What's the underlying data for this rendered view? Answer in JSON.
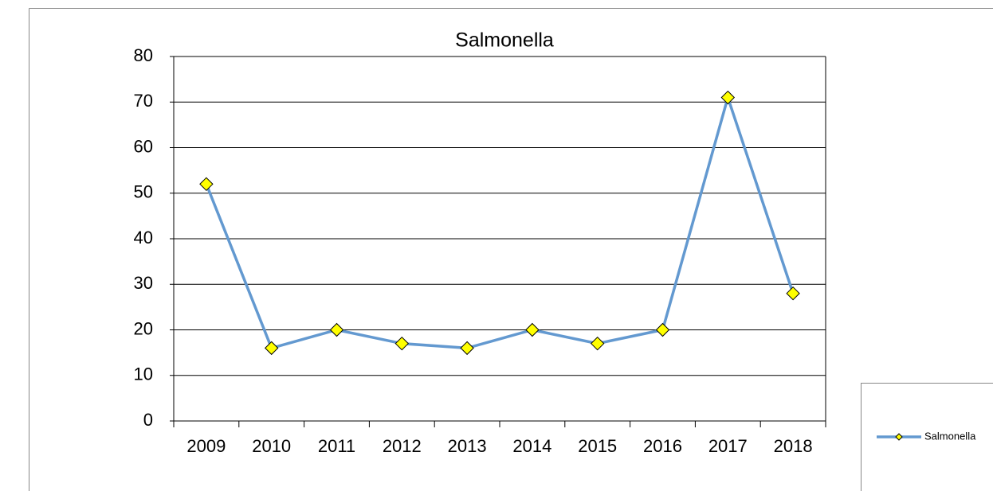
{
  "chart_data": {
    "type": "line",
    "title": "Salmonella",
    "categories": [
      "2009",
      "2010",
      "2011",
      "2012",
      "2013",
      "2014",
      "2015",
      "2016",
      "2017",
      "2018"
    ],
    "series": [
      {
        "name": "Salmonella",
        "color": "#6399d0",
        "marker_color": "#ffff00",
        "values": [
          52,
          16,
          20,
          17,
          16,
          20,
          17,
          20,
          71,
          28
        ]
      }
    ],
    "ylim": [
      0,
      80
    ],
    "yticks": [
      0,
      10,
      20,
      30,
      40,
      50,
      60,
      70,
      80
    ],
    "grid": true,
    "legend": "right"
  }
}
